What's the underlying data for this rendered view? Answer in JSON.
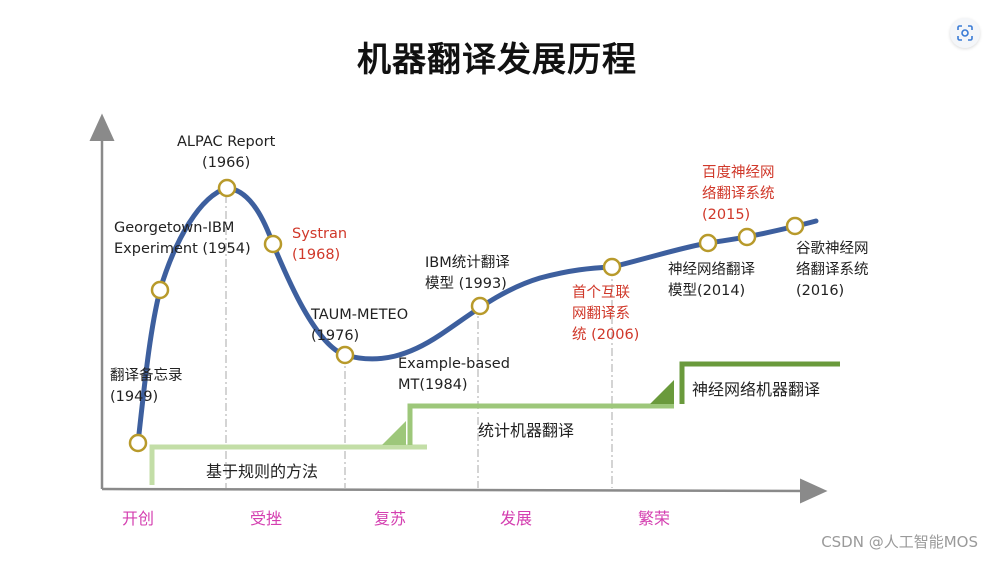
{
  "title": "机器翻译发展历程",
  "watermark": "CSDN @人工智能MOS",
  "scan_icon": "scan-icon",
  "events": [
    {
      "id": "memo",
      "lines": [
        "翻译备忘录",
        "(1949)"
      ],
      "color": "#222222"
    },
    {
      "id": "georgetown",
      "lines": [
        "Georgetown-IBM",
        "Experiment (1954)"
      ],
      "color": "#222222"
    },
    {
      "id": "alpac",
      "lines": [
        "ALPAC Report",
        "(1966)"
      ],
      "color": "#222222"
    },
    {
      "id": "systran",
      "lines": [
        "Systran",
        "(1968)"
      ],
      "color": "#d0382a"
    },
    {
      "id": "taum",
      "lines": [
        "TAUM-METEO",
        "(1976)"
      ],
      "color": "#222222"
    },
    {
      "id": "example",
      "lines": [
        "Example-based",
        "MT(1984)"
      ],
      "color": "#222222"
    },
    {
      "id": "ibm",
      "lines": [
        "IBM统计翻译",
        "模型 (1993)"
      ],
      "color": "#222222"
    },
    {
      "id": "first",
      "lines": [
        "首个互联",
        "网翻译系",
        "统 (2006)"
      ],
      "color": "#d0382a"
    },
    {
      "id": "nmt2014",
      "lines": [
        "神经网络翻译",
        "模型(2014)"
      ],
      "color": "#222222"
    },
    {
      "id": "baidu",
      "lines": [
        "百度神经网",
        "络翻译系统",
        "(2015)"
      ],
      "color": "#d0382a"
    },
    {
      "id": "google",
      "lines": [
        "谷歌神经网",
        "络翻译系统",
        "(2016)"
      ],
      "color": "#222222"
    }
  ],
  "stages": [
    {
      "id": "rule",
      "label": "基于规则的方法"
    },
    {
      "id": "stat",
      "label": "统计机器翻译"
    },
    {
      "id": "neural",
      "label": "神经网络机器翻译"
    }
  ],
  "eras": [
    "开创",
    "受挫",
    "复苏",
    "发展",
    "繁荣"
  ],
  "colors": {
    "curve": "#3d5f9e",
    "node_stroke": "#b89a2b",
    "axis": "#8a8a8a",
    "era_text": "#d43fb0",
    "highlight_text": "#d0382a",
    "stage_rule": "#c3dea7",
    "stage_stat": "#9dc77a",
    "stage_neural": "#6a9a3c"
  }
}
